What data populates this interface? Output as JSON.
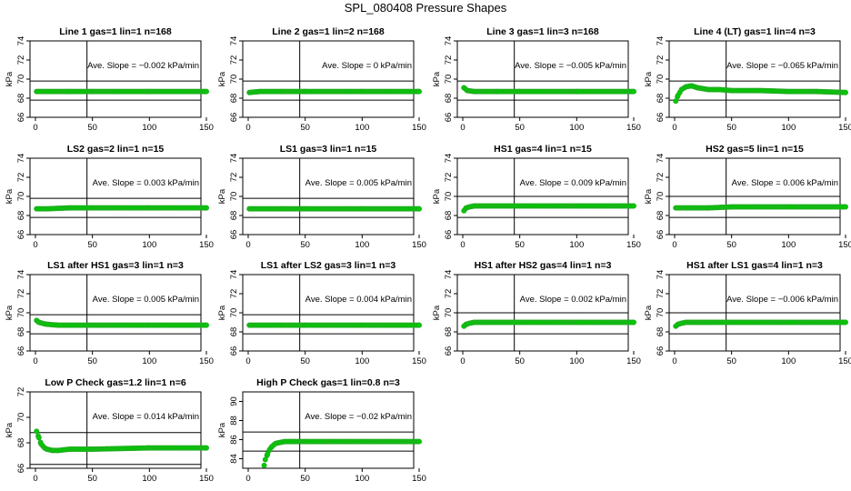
{
  "page": {
    "title": "SPL_080408  Pressure Shapes"
  },
  "style": {
    "point_color": "#00cc00",
    "point_stroke": "#22aa22",
    "line_color": "#000000"
  },
  "chart_data": [
    {
      "type": "scatter",
      "title": "Line 1 gas=1 lin=1 n=168",
      "ylabel": "kPa",
      "xlim": [
        0,
        150
      ],
      "ylim": [
        66,
        74
      ],
      "xticks": [
        0,
        50,
        100,
        150
      ],
      "yticks": [
        66,
        68,
        70,
        72,
        74
      ],
      "hlines": [
        67.8,
        69.8
      ],
      "vline": 50,
      "annotation": "Ave. Slope =  −0.002  kPa/min",
      "series": [
        {
          "x": [
            1,
            10,
            30,
            50,
            100,
            150
          ],
          "y": [
            68.7,
            68.7,
            68.7,
            68.7,
            68.7,
            68.7
          ]
        }
      ]
    },
    {
      "type": "scatter",
      "title": "Line 2 gas=1 lin=2 n=168",
      "ylabel": "kPa",
      "xlim": [
        0,
        150
      ],
      "ylim": [
        66,
        74
      ],
      "xticks": [
        0,
        50,
        100,
        150
      ],
      "yticks": [
        66,
        68,
        70,
        72,
        74
      ],
      "hlines": [
        67.8,
        69.8
      ],
      "vline": 50,
      "annotation": "Ave. Slope =  0  kPa/min",
      "series": [
        {
          "x": [
            1,
            10,
            30,
            50,
            100,
            150
          ],
          "y": [
            68.6,
            68.7,
            68.7,
            68.7,
            68.7,
            68.7
          ]
        }
      ]
    },
    {
      "type": "scatter",
      "title": "Line 3 gas=1 lin=3 n=168",
      "ylabel": "kPa",
      "xlim": [
        0,
        150
      ],
      "ylim": [
        66,
        74
      ],
      "xticks": [
        0,
        50,
        100,
        150
      ],
      "yticks": [
        66,
        68,
        70,
        72,
        74
      ],
      "hlines": [
        67.8,
        69.8
      ],
      "vline": 50,
      "annotation": "Ave. Slope =  −0.005  kPa/min",
      "series": [
        {
          "x": [
            1,
            4,
            10,
            30,
            50,
            100,
            150
          ],
          "y": [
            69.1,
            68.8,
            68.7,
            68.7,
            68.7,
            68.7,
            68.7
          ]
        }
      ]
    },
    {
      "type": "scatter",
      "title": "Line 4 (LT) gas=1 lin=4 n=3",
      "ylabel": "kPa",
      "xlim": [
        0,
        150
      ],
      "ylim": [
        66,
        74
      ],
      "xticks": [
        0,
        50,
        100,
        150
      ],
      "yticks": [
        66,
        68,
        70,
        72,
        74
      ],
      "hlines": [
        67.8,
        69.8
      ],
      "vline": 50,
      "annotation": "Ave. Slope =  −0.065  kPa/min",
      "series": [
        {
          "x": [
            1,
            3,
            6,
            10,
            15,
            20,
            30,
            40,
            50,
            75,
            100,
            125,
            150
          ],
          "y": [
            67.7,
            68.3,
            68.9,
            69.2,
            69.3,
            69.1,
            68.9,
            68.9,
            68.8,
            68.8,
            68.7,
            68.7,
            68.6
          ]
        }
      ]
    },
    {
      "type": "scatter",
      "title": "LS2 gas=2 lin=1 n=15",
      "ylabel": "kPa",
      "xlim": [
        0,
        150
      ],
      "ylim": [
        66,
        74
      ],
      "xticks": [
        0,
        50,
        100,
        150
      ],
      "yticks": [
        66,
        68,
        70,
        72,
        74
      ],
      "hlines": [
        67.8,
        69.8
      ],
      "vline": 50,
      "annotation": "Ave. Slope =  0.003  kPa/min",
      "series": [
        {
          "x": [
            1,
            10,
            30,
            50,
            100,
            150
          ],
          "y": [
            68.7,
            68.7,
            68.8,
            68.8,
            68.8,
            68.8
          ]
        }
      ]
    },
    {
      "type": "scatter",
      "title": "LS1 gas=3 lin=1 n=15",
      "ylabel": "kPa",
      "xlim": [
        0,
        150
      ],
      "ylim": [
        66,
        74
      ],
      "xticks": [
        0,
        50,
        100,
        150
      ],
      "yticks": [
        66,
        68,
        70,
        72,
        74
      ],
      "hlines": [
        67.8,
        69.8
      ],
      "vline": 50,
      "annotation": "Ave. Slope =  0.005  kPa/min",
      "series": [
        {
          "x": [
            1,
            10,
            30,
            50,
            100,
            150
          ],
          "y": [
            68.7,
            68.7,
            68.7,
            68.7,
            68.7,
            68.7
          ]
        }
      ]
    },
    {
      "type": "scatter",
      "title": "HS1 gas=4 lin=1 n=15",
      "ylabel": "kPa",
      "xlim": [
        0,
        150
      ],
      "ylim": [
        66,
        74
      ],
      "xticks": [
        0,
        50,
        100,
        150
      ],
      "yticks": [
        66,
        68,
        70,
        72,
        74
      ],
      "hlines": [
        67.8,
        70.0
      ],
      "vline": 50,
      "annotation": "Ave. Slope =  0.009  kPa/min",
      "series": [
        {
          "x": [
            1,
            3,
            6,
            10,
            20,
            50,
            100,
            150
          ],
          "y": [
            68.5,
            68.8,
            68.9,
            69.0,
            69.0,
            69.0,
            69.0,
            69.0
          ]
        }
      ]
    },
    {
      "type": "scatter",
      "title": "HS2 gas=5 lin=1 n=15",
      "ylabel": "kPa",
      "xlim": [
        0,
        150
      ],
      "ylim": [
        66,
        74
      ],
      "xticks": [
        0,
        50,
        100,
        150
      ],
      "yticks": [
        66,
        68,
        70,
        72,
        74
      ],
      "hlines": [
        67.8,
        70.0
      ],
      "vline": 50,
      "annotation": "Ave. Slope =  0.006  kPa/min",
      "series": [
        {
          "x": [
            1,
            10,
            30,
            50,
            100,
            150
          ],
          "y": [
            68.8,
            68.8,
            68.8,
            68.9,
            68.9,
            68.9
          ]
        }
      ]
    },
    {
      "type": "scatter",
      "title": "LS1 after HS1 gas=3 lin=1 n=3",
      "ylabel": "kPa",
      "xlim": [
        0,
        150
      ],
      "ylim": [
        66,
        74
      ],
      "xticks": [
        0,
        50,
        100,
        150
      ],
      "yticks": [
        66,
        68,
        70,
        72,
        74
      ],
      "hlines": [
        67.8,
        69.8
      ],
      "vline": 50,
      "annotation": "Ave. Slope =  0.005  kPa/min",
      "series": [
        {
          "x": [
            1,
            3,
            6,
            10,
            20,
            50,
            100,
            150
          ],
          "y": [
            69.2,
            69.0,
            68.9,
            68.8,
            68.7,
            68.7,
            68.7,
            68.7
          ]
        }
      ]
    },
    {
      "type": "scatter",
      "title": "LS1 after LS2 gas=3 lin=1 n=3",
      "ylabel": "kPa",
      "xlim": [
        0,
        150
      ],
      "ylim": [
        66,
        74
      ],
      "xticks": [
        0,
        50,
        100,
        150
      ],
      "yticks": [
        66,
        68,
        70,
        72,
        74
      ],
      "hlines": [
        67.8,
        69.8
      ],
      "vline": 50,
      "annotation": "Ave. Slope =  0.004  kPa/min",
      "series": [
        {
          "x": [
            1,
            10,
            30,
            50,
            100,
            150
          ],
          "y": [
            68.7,
            68.7,
            68.7,
            68.7,
            68.7,
            68.7
          ]
        }
      ]
    },
    {
      "type": "scatter",
      "title": "HS1 after HS2 gas=4 lin=1 n=3",
      "ylabel": "kPa",
      "xlim": [
        0,
        150
      ],
      "ylim": [
        66,
        74
      ],
      "xticks": [
        0,
        50,
        100,
        150
      ],
      "yticks": [
        66,
        68,
        70,
        72,
        74
      ],
      "hlines": [
        67.8,
        70.0
      ],
      "vline": 50,
      "annotation": "Ave. Slope =  0.002  kPa/min",
      "series": [
        {
          "x": [
            1,
            3,
            6,
            10,
            20,
            50,
            100,
            150
          ],
          "y": [
            68.6,
            68.8,
            68.9,
            69.0,
            69.0,
            69.0,
            69.0,
            69.0
          ]
        }
      ]
    },
    {
      "type": "scatter",
      "title": "HS1 after LS1 gas=4 lin=1 n=3",
      "ylabel": "kPa",
      "xlim": [
        0,
        150
      ],
      "ylim": [
        66,
        74
      ],
      "xticks": [
        0,
        50,
        100,
        150
      ],
      "yticks": [
        66,
        68,
        70,
        72,
        74
      ],
      "hlines": [
        67.8,
        70.0
      ],
      "vline": 50,
      "annotation": "Ave. Slope =  −0.006  kPa/min",
      "series": [
        {
          "x": [
            1,
            3,
            6,
            10,
            20,
            50,
            100,
            150
          ],
          "y": [
            68.6,
            68.8,
            68.9,
            69.0,
            69.0,
            69.0,
            69.0,
            69.0
          ]
        }
      ]
    },
    {
      "type": "scatter",
      "title": "Low P Check gas=1.2 lin=1 n=6",
      "ylabel": "kPa",
      "xlim": [
        0,
        150
      ],
      "ylim": [
        66,
        72
      ],
      "xticks": [
        0,
        50,
        100,
        150
      ],
      "yticks": [
        66,
        68,
        70,
        72
      ],
      "hlines": [
        66.3,
        68.8
      ],
      "vline": 50,
      "annotation": "Ave. Slope =  0.014  kPa/min",
      "series": [
        {
          "x": [
            1,
            3,
            5,
            8,
            10,
            15,
            20,
            30,
            50,
            100,
            150
          ],
          "y": [
            68.9,
            68.4,
            67.9,
            67.6,
            67.5,
            67.4,
            67.4,
            67.5,
            67.5,
            67.6,
            67.6
          ]
        }
      ]
    },
    {
      "type": "scatter",
      "title": "High P Check gas=1 lin=0.8 n=3",
      "ylabel": "kPa",
      "xlim": [
        0,
        150
      ],
      "ylim": [
        83,
        91
      ],
      "xticks": [
        0,
        50,
        100,
        150
      ],
      "yticks": [
        84,
        86,
        88,
        90
      ],
      "hlines": [
        84.8,
        86.8
      ],
      "vline": 50,
      "annotation": "Ave. Slope =  −0.02  kPa/min",
      "series": [
        {
          "x": [
            14,
            15,
            17,
            19,
            21,
            24,
            28,
            32,
            40,
            50,
            75,
            100,
            125,
            150
          ],
          "y": [
            83.3,
            83.9,
            84.5,
            85.0,
            85.3,
            85.6,
            85.7,
            85.8,
            85.8,
            85.8,
            85.8,
            85.8,
            85.8,
            85.8
          ]
        }
      ]
    }
  ]
}
